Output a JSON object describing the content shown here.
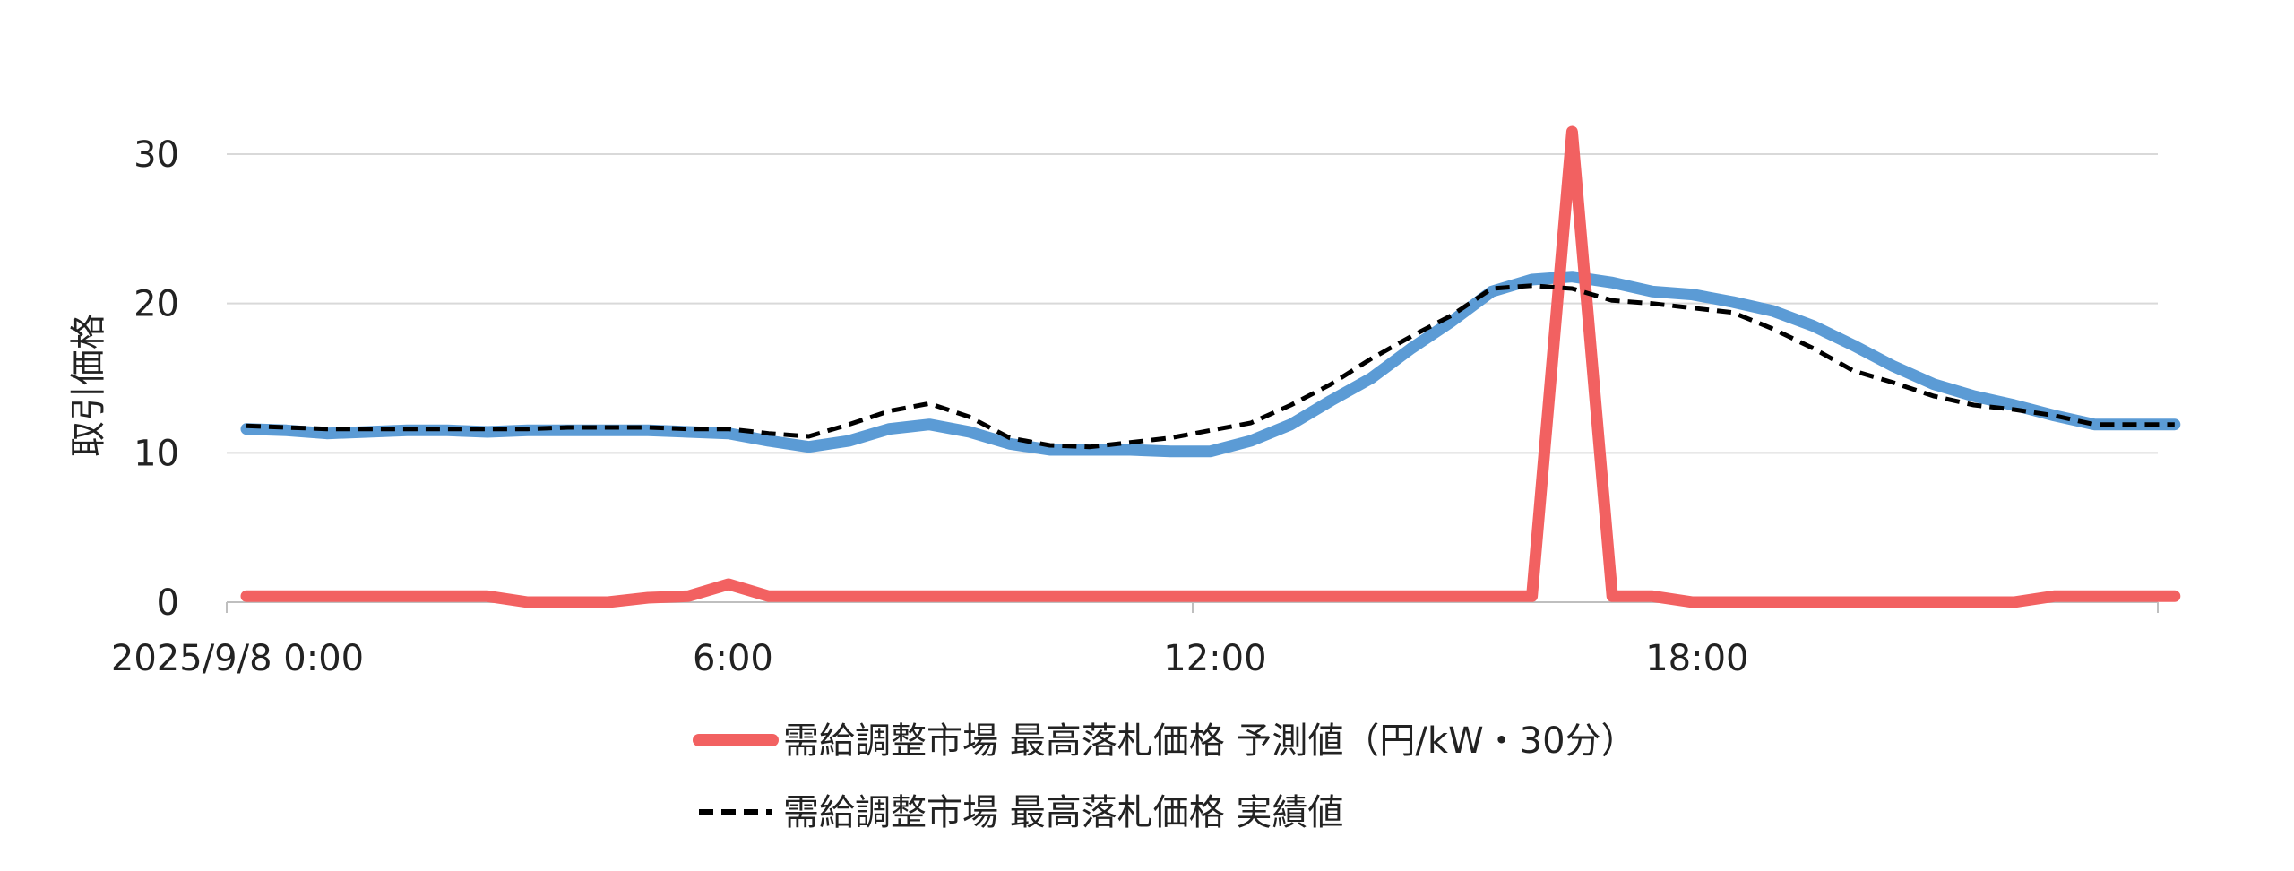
{
  "chart_data": {
    "type": "line",
    "ylabel": "取引価格",
    "xlabel": "",
    "ylim": [
      0,
      30
    ],
    "yticks": [
      0,
      10,
      20,
      30
    ],
    "grid": true,
    "legend_position": "bottom",
    "x_start": "2025/9/8 0:00",
    "x_step_minutes": 30,
    "xticks": [
      {
        "label": "2025/9/8 0:00",
        "index": 0
      },
      {
        "label": "6:00",
        "index": 12
      },
      {
        "label": "12:00",
        "index": 24
      },
      {
        "label": "18:00",
        "index": 36
      }
    ],
    "series": [
      {
        "name": "需給調整市場 最高落札価格 予測値（円/kW・30分）",
        "color": "#f26161",
        "style": "solid-thick",
        "values": [
          0.4,
          0.4,
          0.4,
          0.4,
          0.4,
          0.4,
          0.4,
          0.0,
          0.0,
          0.0,
          0.3,
          0.4,
          1.2,
          0.4,
          0.4,
          0.4,
          0.4,
          0.4,
          0.4,
          0.4,
          0.4,
          0.4,
          0.4,
          0.4,
          0.4,
          0.4,
          0.4,
          0.4,
          0.4,
          0.4,
          0.4,
          0.4,
          0.4,
          31.5,
          0.4,
          0.4,
          0.0,
          0.0,
          0.0,
          0.0,
          0.0,
          0.0,
          0.0,
          0.0,
          0.0,
          0.4,
          0.4,
          0.4,
          0.4
        ]
      },
      {
        "name": "",
        "color": "#5b9bd5",
        "style": "solid-thick",
        "values": [
          11.6,
          11.5,
          11.3,
          11.4,
          11.5,
          11.5,
          11.4,
          11.5,
          11.5,
          11.5,
          11.5,
          11.4,
          11.3,
          10.8,
          10.4,
          10.8,
          11.6,
          11.9,
          11.4,
          10.6,
          10.2,
          10.2,
          10.2,
          10.1,
          10.1,
          10.8,
          11.9,
          13.5,
          15.0,
          17.0,
          18.8,
          20.8,
          21.6,
          21.8,
          21.4,
          20.8,
          20.6,
          20.1,
          19.5,
          18.5,
          17.2,
          15.8,
          14.6,
          13.8,
          13.2,
          12.5,
          11.9,
          11.9,
          11.9
        ]
      },
      {
        "name": "需給調整市場 最高落札価格 実績値",
        "color": "#000000",
        "style": "dashed",
        "values": [
          11.8,
          11.7,
          11.6,
          11.6,
          11.6,
          11.6,
          11.6,
          11.6,
          11.7,
          11.7,
          11.7,
          11.6,
          11.6,
          11.3,
          11.1,
          11.9,
          12.8,
          13.3,
          12.4,
          11.0,
          10.5,
          10.4,
          10.7,
          11.0,
          11.5,
          12.0,
          13.2,
          14.6,
          16.3,
          17.8,
          19.2,
          21.0,
          21.2,
          21.0,
          20.2,
          20.0,
          19.7,
          19.4,
          18.3,
          17.0,
          15.5,
          14.7,
          13.8,
          13.2,
          12.9,
          12.5,
          11.9,
          11.9,
          11.9
        ]
      }
    ]
  },
  "legend_order": [
    0,
    2
  ],
  "axis_color": "#bfbfbf",
  "grid_color": "#d9d9d9"
}
